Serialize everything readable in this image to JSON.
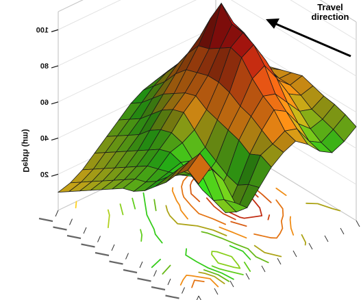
{
  "chart_data": {
    "type": "surface",
    "title": "",
    "zlabel": "Depth (μm)",
    "zlim": [
      0,
      110
    ],
    "zticks": [
      "20",
      "40",
      "60",
      "80",
      "100"
    ],
    "xtick_count": 10,
    "ytick_count": 10,
    "grid": [
      [
        62,
        68,
        58,
        42,
        36,
        44,
        52,
        57,
        60,
        55,
        48,
        44,
        47,
        52
      ],
      [
        66,
        72,
        60,
        40,
        30,
        42,
        55,
        58,
        62,
        60,
        50,
        46,
        50,
        55
      ],
      [
        60,
        64,
        54,
        36,
        26,
        38,
        52,
        62,
        70,
        66,
        56,
        50,
        52,
        57
      ],
      [
        52,
        56,
        50,
        38,
        30,
        40,
        56,
        66,
        74,
        72,
        64,
        56,
        54,
        58
      ],
      [
        46,
        48,
        46,
        42,
        38,
        44,
        58,
        68,
        80,
        84,
        74,
        62,
        58,
        60
      ],
      [
        40,
        42,
        44,
        46,
        44,
        48,
        60,
        72,
        88,
        92,
        80,
        66,
        60,
        62
      ],
      [
        36,
        38,
        42,
        48,
        50,
        54,
        62,
        74,
        90,
        95,
        84,
        68,
        60,
        60
      ],
      [
        34,
        36,
        40,
        46,
        52,
        60,
        66,
        74,
        86,
        96,
        88,
        70,
        62,
        58
      ],
      [
        30,
        32,
        36,
        42,
        50,
        58,
        64,
        72,
        82,
        104,
        90,
        72,
        62,
        56
      ],
      [
        26,
        28,
        32,
        38,
        46,
        54,
        60,
        70,
        80,
        92,
        84,
        68,
        58,
        52
      ],
      [
        22,
        24,
        28,
        34,
        40,
        48,
        56,
        64,
        72,
        78,
        72,
        60,
        52,
        48
      ],
      [
        18,
        20,
        24,
        30,
        36,
        42,
        50,
        56,
        62,
        66,
        62,
        54,
        48,
        44
      ],
      [
        14,
        16,
        20,
        26,
        32,
        38,
        44,
        50,
        54,
        56,
        54,
        48,
        44,
        42
      ],
      [
        10,
        12,
        16,
        22,
        28,
        34,
        40,
        44,
        46,
        48,
        46,
        42,
        40,
        40
      ]
    ],
    "colors": {
      "low": "#ffd21f",
      "mid": "#2ecc1a",
      "high": "#b51310",
      "peak": "#b4b4b4"
    }
  },
  "annotation": {
    "line1": "Travel",
    "line2": "direction"
  }
}
